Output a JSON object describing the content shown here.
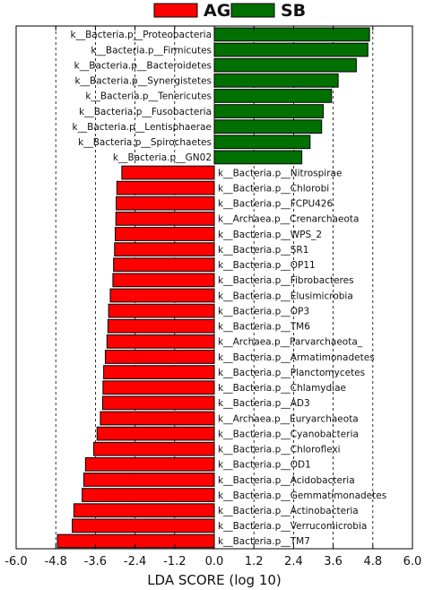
{
  "chart_data": {
    "type": "bar",
    "orientation": "horizontal",
    "xlabel": "LDA SCORE (log 10)",
    "xlim": [
      -6.0,
      6.0
    ],
    "xticks": [
      "-6.0",
      "-4.8",
      "-3.6",
      "-2.4",
      "-1.2",
      "0.0",
      "1.2",
      "2.4",
      "3.6",
      "4.8",
      "6.0"
    ],
    "grid": "vertical dashed",
    "legend_position": "top",
    "series": [
      {
        "name": "AG",
        "color": "#ff0000"
      },
      {
        "name": "SB",
        "color": "#007000"
      }
    ],
    "bars": [
      {
        "label": "k__Bacteria.p__Proteobacteria",
        "value": 4.7,
        "group": "SB"
      },
      {
        "label": "k__Bacteria.p__Firmicutes",
        "value": 4.65,
        "group": "SB"
      },
      {
        "label": "k__Bacteria.p__Bacteroidetes",
        "value": 4.3,
        "group": "SB"
      },
      {
        "label": "k__Bacteria.p__Synergistetes",
        "value": 3.75,
        "group": "SB"
      },
      {
        "label": "k__Bacteria.p__Tenericutes",
        "value": 3.55,
        "group": "SB"
      },
      {
        "label": "k__Bacteria.p__Fusobacteria",
        "value": 3.3,
        "group": "SB"
      },
      {
        "label": "k__Bacteria.p__Lentisphaerae",
        "value": 3.25,
        "group": "SB"
      },
      {
        "label": "k__Bacteria.p__Spirochaetes",
        "value": 2.9,
        "group": "SB"
      },
      {
        "label": "k__Bacteria.p__GN02",
        "value": 2.65,
        "group": "SB"
      },
      {
        "label": "k__Bacteria.p__Nitrospirae",
        "value": -2.8,
        "group": "AG"
      },
      {
        "label": "k__Bacteria.p__Chlorobi",
        "value": -2.95,
        "group": "AG"
      },
      {
        "label": "k__Bacteria.p__FCPU426",
        "value": -2.97,
        "group": "AG"
      },
      {
        "label": "k__Archaea.p__Crenarchaeota",
        "value": -2.98,
        "group": "AG"
      },
      {
        "label": "k__Bacteria.p__WPS_2",
        "value": -3.0,
        "group": "AG"
      },
      {
        "label": "k__Bacteria.p__SR1",
        "value": -3.02,
        "group": "AG"
      },
      {
        "label": "k__Bacteria.p__OP11",
        "value": -3.05,
        "group": "AG"
      },
      {
        "label": "k__Bacteria.p__Fibrobacteres",
        "value": -3.07,
        "group": "AG"
      },
      {
        "label": "k__Bacteria.p__Elusimicrobia",
        "value": -3.15,
        "group": "AG"
      },
      {
        "label": "k__Bacteria.p__OP3",
        "value": -3.2,
        "group": "AG"
      },
      {
        "label": "k__Bacteria.p__TM6",
        "value": -3.22,
        "group": "AG"
      },
      {
        "label": "k__Archaea.p__Parvarchaeota_",
        "value": -3.25,
        "group": "AG"
      },
      {
        "label": "k__Bacteria.p__Armatimonadetes",
        "value": -3.3,
        "group": "AG"
      },
      {
        "label": "k__Bacteria.p__Planctomycetes",
        "value": -3.35,
        "group": "AG"
      },
      {
        "label": "k__Bacteria.p__Chlamydiae",
        "value": -3.37,
        "group": "AG"
      },
      {
        "label": "k__Bacteria.p__AD3",
        "value": -3.38,
        "group": "AG"
      },
      {
        "label": "k__Archaea.p__Euryarchaeota",
        "value": -3.45,
        "group": "AG"
      },
      {
        "label": "k__Bacteria.p__Cyanobacteria",
        "value": -3.55,
        "group": "AG"
      },
      {
        "label": "k__Bacteria.p__Chloroflexi",
        "value": -3.65,
        "group": "AG"
      },
      {
        "label": "k__Bacteria.p__OD1",
        "value": -3.9,
        "group": "AG"
      },
      {
        "label": "k__Bacteria.p__Acidobacteria",
        "value": -3.95,
        "group": "AG"
      },
      {
        "label": "k__Bacteria.p__Gemmatimonadetes",
        "value": -4.0,
        "group": "AG"
      },
      {
        "label": "k__Bacteria.p__Actinobacteria",
        "value": -4.25,
        "group": "AG"
      },
      {
        "label": "k__Bacteria.p__Verrucomicrobia",
        "value": -4.3,
        "group": "AG"
      },
      {
        "label": "k__Bacteria.p__TM7",
        "value": -4.75,
        "group": "AG"
      }
    ]
  }
}
